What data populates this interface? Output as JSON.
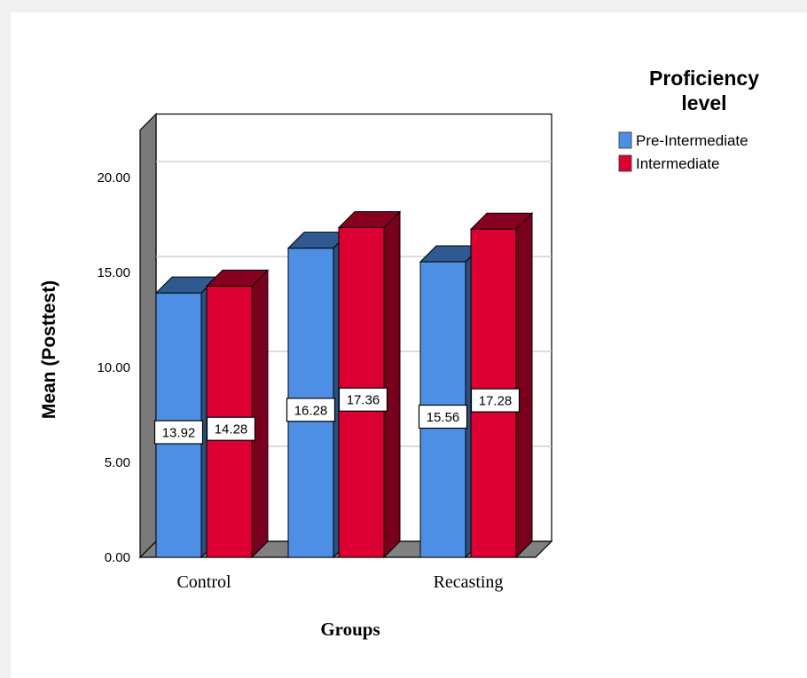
{
  "chart_data": {
    "type": "bar",
    "style": "3d-clustered",
    "title": "",
    "xlabel": "Groups",
    "ylabel": "Mean (Posttest)",
    "ylim": [
      0,
      22.5
    ],
    "yticks": [
      "0.00",
      "5.00",
      "10.00",
      "15.00",
      "20.00"
    ],
    "grid": true,
    "categories": [
      "Control",
      "",
      "Recasting"
    ],
    "series": [
      {
        "name": "Pre-Intermediate",
        "color": "#4e8fe6",
        "values": [
          13.92,
          16.28,
          15.56
        ],
        "labels": [
          "13.92",
          "16.28",
          "15.56"
        ]
      },
      {
        "name": "Intermediate",
        "color": "#dc0032",
        "values": [
          14.28,
          17.36,
          17.28
        ],
        "labels": [
          "14.28",
          "17.36",
          "17.28"
        ]
      }
    ],
    "legend": {
      "title": "Proficiency level",
      "title_lines": [
        "Proficiency",
        "level"
      ],
      "position": "top-right"
    }
  }
}
